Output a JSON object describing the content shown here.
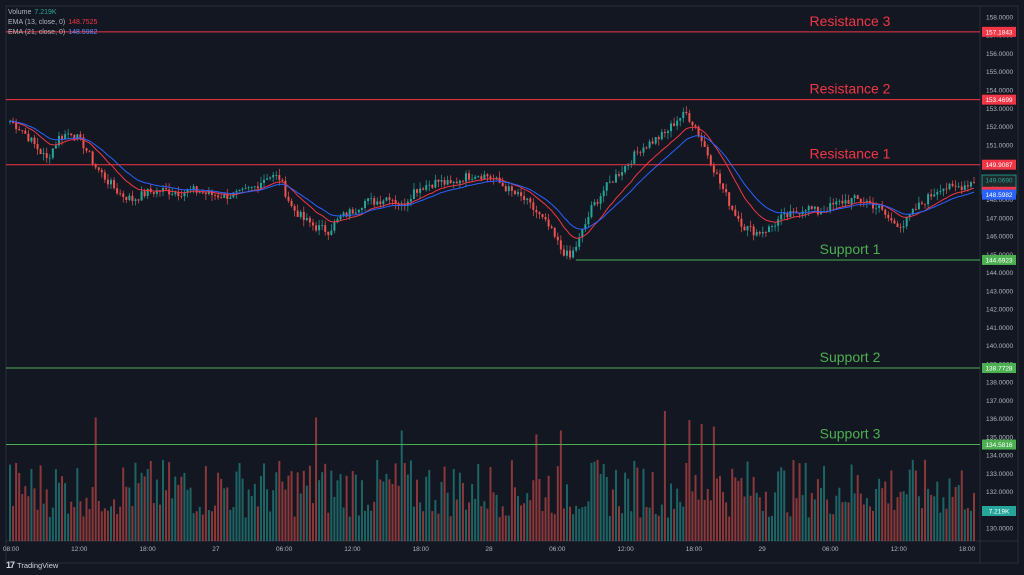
{
  "app": {
    "name": "TradingView"
  },
  "legend": [
    {
      "label": "Volume",
      "value": "7.219K",
      "color": "#26a69a"
    },
    {
      "label": "EMA (13, close, 0)",
      "value": "148.7525",
      "color": "#f23645"
    },
    {
      "label": "EMA (21, close, 0)",
      "value": "148.5982",
      "color": "#2962ff"
    }
  ],
  "chart_data": {
    "type": "candlestick",
    "x_ticks": [
      "08:00",
      "12:00",
      "18:00",
      "27",
      "06:00",
      "12:00",
      "18:00",
      "28",
      "06:00",
      "12:00",
      "18:00",
      "29",
      "06:00",
      "12:00",
      "18:00"
    ],
    "y_ticks": [
      "158.0000",
      "157.0000",
      "156.0000",
      "155.0000",
      "154.0000",
      "153.0000",
      "152.0000",
      "151.0000",
      "150.0000",
      "149.0000",
      "148.0000",
      "147.0000",
      "146.0000",
      "145.0000",
      "144.0000",
      "143.0000",
      "142.0000",
      "141.0000",
      "140.0000",
      "139.0000",
      "138.0000",
      "137.0000",
      "136.0000",
      "135.0000",
      "134.0000",
      "133.0000",
      "132.0000",
      "131.0000",
      "130.0000"
    ],
    "ylim": [
      129.3,
      158.6
    ],
    "levels": [
      {
        "name": "Resistance 3",
        "value": 157.1843,
        "tag": "157.1843",
        "color": "#f23645",
        "from": 0
      },
      {
        "name": "Resistance 2",
        "value": 153.4699,
        "tag": "153.4699",
        "color": "#f23645",
        "from": 0
      },
      {
        "name": "Resistance 1",
        "value": 149.9087,
        "tag": "149.9087",
        "color": "#f23645",
        "from": 0
      },
      {
        "name": "Support 1",
        "value": 144.6923,
        "tag": "144.6923",
        "color": "#4caf50",
        "from": 0.585
      },
      {
        "name": "Support 2",
        "value": 138.7728,
        "tag": "138.7728",
        "color": "#4caf50",
        "from": 0
      },
      {
        "name": "Support 3",
        "value": 134.5816,
        "tag": "134.5816",
        "color": "#4caf50",
        "from": 0
      }
    ],
    "price_keypoints": [
      [
        0,
        152.3
      ],
      [
        4,
        151.8
      ],
      [
        8,
        151.0
      ],
      [
        12,
        150.2
      ],
      [
        16,
        151.4
      ],
      [
        20,
        151.7
      ],
      [
        24,
        151.0
      ],
      [
        28,
        149.8
      ],
      [
        32,
        149.0
      ],
      [
        36,
        148.3
      ],
      [
        40,
        148.0
      ],
      [
        45,
        148.4
      ],
      [
        50,
        148.5
      ],
      [
        55,
        148.4
      ],
      [
        60,
        148.5
      ],
      [
        65,
        148.3
      ],
      [
        70,
        148.2
      ],
      [
        75,
        148.3
      ],
      [
        80,
        148.7
      ],
      [
        84,
        149.3
      ],
      [
        88,
        149.2
      ],
      [
        92,
        147.6
      ],
      [
        96,
        146.9
      ],
      [
        100,
        146.5
      ],
      [
        104,
        146.3
      ],
      [
        108,
        147.0
      ],
      [
        112,
        147.4
      ],
      [
        116,
        147.9
      ],
      [
        120,
        147.9
      ],
      [
        124,
        148.2
      ],
      [
        128,
        147.6
      ],
      [
        132,
        148.5
      ],
      [
        136,
        148.8
      ],
      [
        140,
        149.0
      ],
      [
        144,
        148.8
      ],
      [
        148,
        149.2
      ],
      [
        152,
        149.4
      ],
      [
        156,
        149.3
      ],
      [
        160,
        148.9
      ],
      [
        164,
        148.4
      ],
      [
        168,
        148.0
      ],
      [
        172,
        147.3
      ],
      [
        176,
        146.5
      ],
      [
        180,
        145.3
      ],
      [
        183,
        144.8
      ],
      [
        186,
        145.8
      ],
      [
        190,
        147.5
      ],
      [
        194,
        148.5
      ],
      [
        198,
        149.3
      ],
      [
        202,
        150.0
      ],
      [
        206,
        150.8
      ],
      [
        210,
        151.2
      ],
      [
        214,
        151.6
      ],
      [
        218,
        152.4
      ],
      [
        221,
        152.7
      ],
      [
        224,
        152.0
      ],
      [
        228,
        150.5
      ],
      [
        232,
        148.9
      ],
      [
        236,
        147.5
      ],
      [
        240,
        146.5
      ],
      [
        244,
        146.2
      ],
      [
        248,
        146.4
      ],
      [
        252,
        147.0
      ],
      [
        256,
        147.2
      ],
      [
        260,
        147.6
      ],
      [
        264,
        147.3
      ],
      [
        268,
        147.6
      ],
      [
        272,
        147.9
      ],
      [
        276,
        148.0
      ],
      [
        280,
        147.9
      ],
      [
        284,
        147.5
      ],
      [
        288,
        146.8
      ],
      [
        292,
        146.6
      ],
      [
        296,
        147.5
      ],
      [
        300,
        148.1
      ],
      [
        304,
        148.7
      ],
      [
        308,
        148.6
      ],
      [
        312,
        148.8
      ],
      [
        315,
        149.05
      ]
    ],
    "volume_spikes": [
      [
        28,
        0.95
      ],
      [
        100,
        0.95
      ],
      [
        128,
        0.85
      ],
      [
        172,
        0.82
      ],
      [
        180,
        0.85
      ],
      [
        214,
        1.0
      ],
      [
        222,
        0.93
      ],
      [
        226,
        0.9
      ],
      [
        230,
        0.88
      ]
    ]
  },
  "price_axis": {
    "last_price": "149.0690",
    "countdown": "08:12",
    "ema13_tag": "148.7525",
    "ema21_tag": "148.5982",
    "volume_tag": "7.219K"
  }
}
